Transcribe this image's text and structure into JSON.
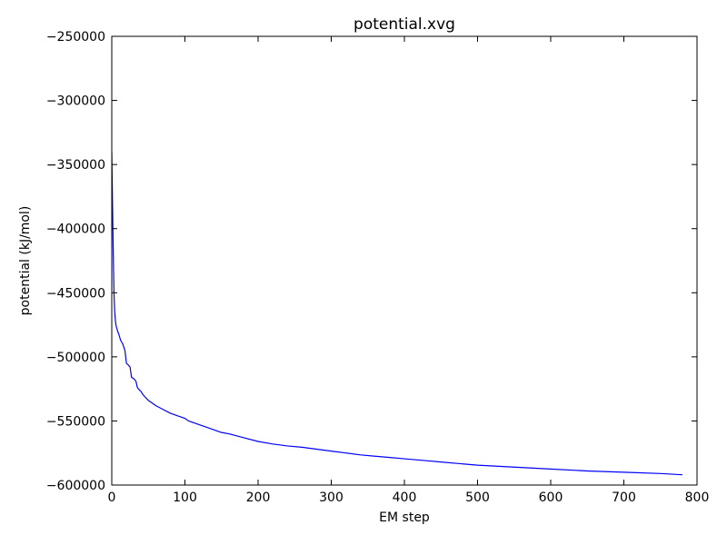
{
  "chart_data": {
    "type": "line",
    "title": "potential.xvg",
    "xlabel": "EM step",
    "ylabel": "potential (kJ/mol)",
    "xlim": [
      0,
      800
    ],
    "ylim": [
      -600000,
      -250000
    ],
    "xticks": [
      0,
      100,
      200,
      300,
      400,
      500,
      600,
      700,
      800
    ],
    "xtick_labels": [
      "0",
      "100",
      "200",
      "300",
      "400",
      "500",
      "600",
      "700",
      "800"
    ],
    "yticks": [
      -250000,
      -300000,
      -350000,
      -400000,
      -450000,
      -500000,
      -550000,
      -600000
    ],
    "ytick_labels": [
      "−250000",
      "−300000",
      "−350000",
      "−400000",
      "−450000",
      "−500000",
      "−550000",
      "−600000"
    ],
    "grid": false,
    "colors": {
      "line": "#0000ff",
      "frame": "#000000"
    },
    "series": [
      {
        "color": "#0000ff",
        "x": [
          0,
          1,
          2,
          3,
          4,
          5,
          6,
          8,
          10,
          12,
          15,
          18,
          20,
          22,
          25,
          27,
          30,
          33,
          35,
          38,
          40,
          42,
          45,
          50,
          55,
          60,
          70,
          80,
          90,
          100,
          105,
          110,
          120,
          130,
          140,
          150,
          160,
          170,
          180,
          200,
          220,
          240,
          260,
          280,
          300,
          320,
          340,
          360,
          380,
          400,
          450,
          500,
          550,
          600,
          650,
          700,
          750,
          780
        ],
        "y": [
          -340000,
          -380000,
          -420000,
          -450000,
          -465000,
          -472000,
          -476000,
          -480000,
          -483000,
          -487000,
          -490000,
          -495000,
          -505000,
          -506000,
          -508000,
          -516000,
          -517000,
          -519000,
          -524000,
          -526000,
          -527000,
          -529000,
          -531000,
          -534000,
          -536000,
          -538000,
          -541000,
          -544000,
          -546000,
          -548000,
          -550000,
          -551000,
          -553000,
          -555000,
          -557000,
          -559000,
          -560000,
          -561500,
          -563000,
          -566000,
          -568000,
          -569500,
          -570500,
          -572000,
          -573500,
          -575000,
          -576500,
          -577500,
          -578500,
          -579500,
          -582000,
          -584500,
          -586000,
          -587500,
          -589000,
          -590000,
          -591000,
          -592000
        ]
      }
    ]
  }
}
